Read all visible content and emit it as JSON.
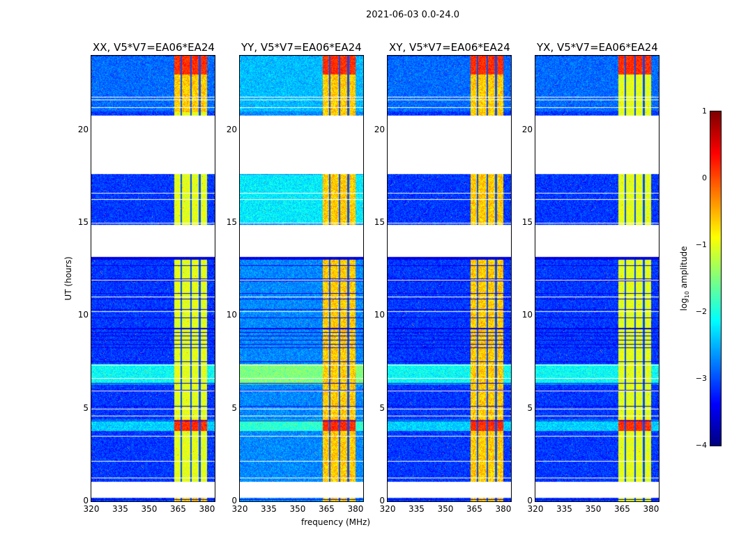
{
  "chart_data": {
    "type": "heatmap",
    "title": "2021-06-03 0.0-24.0",
    "xlabel": "frequency (MHz)",
    "ylabel": "UT (hours)",
    "xlim": [
      320,
      384
    ],
    "ylim": [
      0,
      24
    ],
    "xticks": [
      "320",
      "335",
      "350",
      "365",
      "380"
    ],
    "yticks": [
      "0",
      "5",
      "10",
      "15",
      "20"
    ],
    "panels": [
      {
        "title": "XX, V5*V7=EA06*EA24"
      },
      {
        "title": "YY, V5*V7=EA06*EA24"
      },
      {
        "title": "XY, V5*V7=EA06*EA24"
      },
      {
        "title": "YX, V5*V7=EA06*EA24"
      }
    ],
    "colorbar": {
      "label": "log10 amplitude",
      "range": [
        -4,
        1
      ],
      "ticks": [
        "1",
        "0",
        "−1",
        "−2",
        "−3",
        "−4"
      ],
      "colormap": "jet"
    },
    "flagged_ut_ranges": [
      [
        0.2,
        1.05
      ],
      [
        13.2,
        14.9
      ],
      [
        17.7,
        20.8
      ]
    ],
    "bright_band_mhz": [
      363,
      380
    ]
  }
}
